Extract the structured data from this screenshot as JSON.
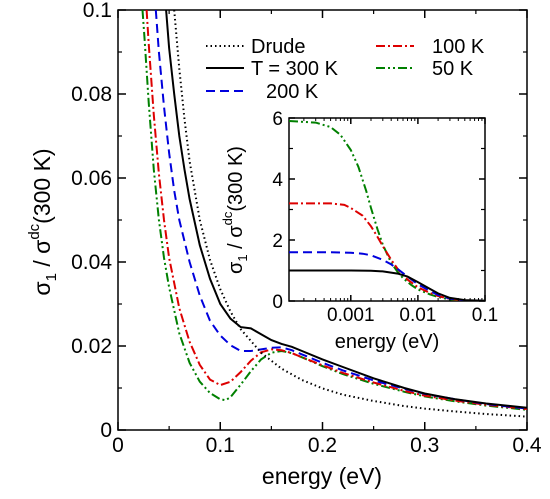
{
  "chart_data": [
    {
      "type": "line",
      "panel": "main",
      "xlabel": "energy (eV)",
      "ylabel": {
        "sigma": "σ",
        "sub": "1",
        "slash": " / σ",
        "sup": "dc",
        "paren": "(300 K)"
      },
      "xlim": [
        0,
        0.4
      ],
      "ylim": [
        0,
        0.1
      ],
      "x_ticks": [
        0,
        0.1,
        0.2,
        0.3,
        0.4
      ],
      "x_tick_labels": [
        "0",
        "0.1",
        "0.2",
        "0.3",
        "0.4"
      ],
      "y_ticks": [
        0,
        0.02,
        0.04,
        0.06,
        0.08,
        0.1
      ],
      "y_tick_labels": [
        "0",
        "0.02",
        "0.04",
        "0.06",
        "0.08",
        "0.1"
      ],
      "grid": false,
      "legend_placement": "top-right",
      "series": [
        {
          "name": "Drude",
          "color": "#000000",
          "dash": "dotted",
          "x": [
            0.055,
            0.06,
            0.065,
            0.07,
            0.08,
            0.09,
            0.1,
            0.11,
            0.12,
            0.14,
            0.16,
            0.18,
            0.2,
            0.22,
            0.25,
            0.28,
            0.3,
            0.33,
            0.36,
            0.4
          ],
          "y": [
            0.1,
            0.086,
            0.074,
            0.064,
            0.05,
            0.0405,
            0.0335,
            0.0282,
            0.024,
            0.0184,
            0.0146,
            0.0119,
            0.0099,
            0.0084,
            0.0069,
            0.0057,
            0.0051,
            0.0044,
            0.0038,
            0.0032
          ]
        },
        {
          "name": "T = 300 K",
          "color": "#000000",
          "dash": "solid",
          "x": [
            0.047,
            0.05,
            0.055,
            0.06,
            0.065,
            0.07,
            0.08,
            0.09,
            0.1,
            0.11,
            0.12,
            0.13,
            0.14,
            0.15,
            0.16,
            0.17,
            0.18,
            0.2,
            0.22,
            0.25,
            0.28,
            0.3,
            0.33,
            0.36,
            0.4
          ],
          "y": [
            0.1,
            0.091,
            0.08,
            0.07,
            0.062,
            0.055,
            0.044,
            0.036,
            0.03,
            0.0265,
            0.0245,
            0.0242,
            0.0228,
            0.0214,
            0.0205,
            0.0198,
            0.0188,
            0.0168,
            0.015,
            0.0123,
            0.01,
            0.0087,
            0.0073,
            0.0063,
            0.0053
          ]
        },
        {
          "name": "200 K",
          "color": "#0000dd",
          "dash": "dashed",
          "x": [
            0.037,
            0.04,
            0.045,
            0.05,
            0.055,
            0.06,
            0.07,
            0.08,
            0.09,
            0.1,
            0.11,
            0.12,
            0.13,
            0.14,
            0.15,
            0.16,
            0.17,
            0.18,
            0.2,
            0.22,
            0.25,
            0.28,
            0.3,
            0.33,
            0.36,
            0.4
          ],
          "y": [
            0.1,
            0.09,
            0.077,
            0.066,
            0.057,
            0.05,
            0.04,
            0.032,
            0.026,
            0.0225,
            0.0202,
            0.0188,
            0.0188,
            0.0192,
            0.0196,
            0.0197,
            0.019,
            0.018,
            0.016,
            0.0142,
            0.0118,
            0.0098,
            0.0086,
            0.0073,
            0.0062,
            0.0051
          ]
        },
        {
          "name": "100 K",
          "color": "#dd0000",
          "dash": "dashdot",
          "x": [
            0.028,
            0.03,
            0.035,
            0.04,
            0.045,
            0.05,
            0.06,
            0.07,
            0.08,
            0.09,
            0.1,
            0.11,
            0.12,
            0.13,
            0.14,
            0.15,
            0.16,
            0.17,
            0.18,
            0.2,
            0.22,
            0.25,
            0.28,
            0.3,
            0.33,
            0.36,
            0.4
          ],
          "y": [
            0.1,
            0.092,
            0.075,
            0.061,
            0.05,
            0.041,
            0.029,
            0.021,
            0.0155,
            0.012,
            0.0107,
            0.0115,
            0.0138,
            0.0165,
            0.0185,
            0.0192,
            0.019,
            0.0183,
            0.0173,
            0.0154,
            0.0136,
            0.0113,
            0.0093,
            0.0082,
            0.007,
            0.006,
            0.005
          ]
        },
        {
          "name": "50 K",
          "color": "#008000",
          "dash": "dashdotdot",
          "x": [
            0.024,
            0.026,
            0.03,
            0.035,
            0.04,
            0.045,
            0.05,
            0.06,
            0.07,
            0.08,
            0.09,
            0.1,
            0.105,
            0.11,
            0.12,
            0.13,
            0.14,
            0.15,
            0.16,
            0.17,
            0.18,
            0.2,
            0.22,
            0.25,
            0.28,
            0.3,
            0.33,
            0.36,
            0.4
          ],
          "y": [
            0.1,
            0.093,
            0.078,
            0.062,
            0.05,
            0.041,
            0.034,
            0.023,
            0.016,
            0.0115,
            0.0088,
            0.0073,
            0.0071,
            0.0078,
            0.0108,
            0.014,
            0.0168,
            0.0184,
            0.0188,
            0.0183,
            0.0173,
            0.0152,
            0.0133,
            0.011,
            0.0091,
            0.008,
            0.0068,
            0.0058,
            0.0048
          ]
        }
      ]
    },
    {
      "type": "line",
      "panel": "inset",
      "xlabel": "energy (eV)",
      "ylabel": {
        "sigma": "σ",
        "sub": "1",
        "slash": " / σ",
        "sup": "dc",
        "paren": "(300 K)"
      },
      "xscale": "log",
      "xlim": [
        0.00012,
        0.1
      ],
      "ylim": [
        0,
        6
      ],
      "x_ticks": [
        0.001,
        0.01,
        0.1
      ],
      "x_tick_labels": [
        "0.001",
        "0.01",
        "0.1"
      ],
      "y_ticks": [
        0,
        2,
        4,
        6
      ],
      "y_tick_labels": [
        "0",
        "2",
        "4",
        "6"
      ],
      "grid": false,
      "series": [
        {
          "name": "T = 300 K",
          "color": "#000000",
          "dash": "solid",
          "x": [
            0.00012,
            0.0005,
            0.001,
            0.002,
            0.003,
            0.005,
            0.007,
            0.01,
            0.015,
            0.02,
            0.03,
            0.05,
            0.1
          ],
          "y": [
            1.0,
            1.0,
            1.0,
            0.99,
            0.97,
            0.9,
            0.8,
            0.62,
            0.4,
            0.25,
            0.1,
            0.03,
            0.01
          ]
        },
        {
          "name": "200 K",
          "color": "#0000dd",
          "dash": "dashed",
          "x": [
            0.00012,
            0.0005,
            0.001,
            0.0015,
            0.002,
            0.003,
            0.004,
            0.005,
            0.007,
            0.01,
            0.015,
            0.02,
            0.03,
            0.05,
            0.1
          ],
          "y": [
            1.6,
            1.6,
            1.58,
            1.55,
            1.5,
            1.35,
            1.2,
            1.05,
            0.8,
            0.55,
            0.33,
            0.2,
            0.08,
            0.02,
            0.01
          ]
        },
        {
          "name": "100 K",
          "color": "#dd0000",
          "dash": "dashdot",
          "x": [
            0.00012,
            0.0005,
            0.0008,
            0.001,
            0.0015,
            0.002,
            0.0025,
            0.003,
            0.004,
            0.005,
            0.007,
            0.01,
            0.015,
            0.02,
            0.03,
            0.05,
            0.1
          ],
          "y": [
            3.2,
            3.2,
            3.15,
            3.05,
            2.8,
            2.45,
            2.1,
            1.8,
            1.35,
            1.05,
            0.7,
            0.45,
            0.27,
            0.16,
            0.07,
            0.02,
            0.01
          ]
        },
        {
          "name": "50 K",
          "color": "#008000",
          "dash": "dashdotdot",
          "x": [
            0.00012,
            0.0003,
            0.0005,
            0.0007,
            0.001,
            0.0013,
            0.0017,
            0.002,
            0.0025,
            0.003,
            0.004,
            0.005,
            0.006,
            0.008,
            0.01,
            0.015,
            0.02,
            0.03,
            0.05,
            0.1
          ],
          "y": [
            5.9,
            5.85,
            5.7,
            5.45,
            4.95,
            4.4,
            3.6,
            3.05,
            2.35,
            1.85,
            1.25,
            0.95,
            0.75,
            0.52,
            0.38,
            0.22,
            0.13,
            0.05,
            0.01,
            0.01
          ]
        }
      ]
    }
  ],
  "legend": {
    "left": [
      "Drude",
      "T = 300 K",
      "200 K"
    ],
    "right": [
      "100 K",
      "50 K"
    ]
  }
}
